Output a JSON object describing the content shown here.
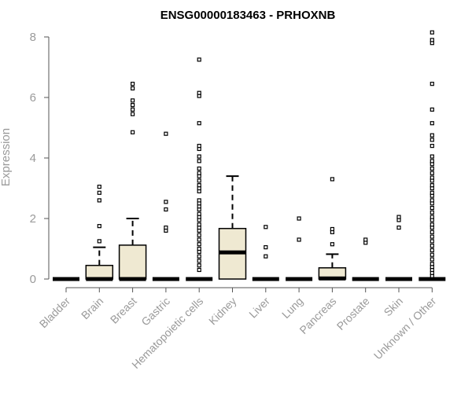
{
  "chart_data": {
    "type": "boxplot",
    "title": "ENSG00000183463 - PRHOXNB",
    "xlabel": "",
    "ylabel": "Expression",
    "ylim": [
      0,
      8.2
    ],
    "yticks": [
      "0",
      "2",
      "4",
      "6",
      "8"
    ],
    "box_fill": "#efe9d2",
    "grid": false,
    "categories": [
      "Bladder",
      "Brain",
      "Breast",
      "Gastric",
      "Hematopoietic cells",
      "Kidney",
      "Liver",
      "Lung",
      "Pancreas",
      "Prostate",
      "Skin",
      "Unknown / Other"
    ],
    "boxes": [
      {
        "q1": 0,
        "median": 0,
        "q3": 0,
        "whisker_low": 0,
        "whisker_high": 0,
        "outliers": []
      },
      {
        "q1": 0,
        "median": 0,
        "q3": 0.45,
        "whisker_low": 0,
        "whisker_high": 1.05,
        "outliers": [
          1.25,
          1.75,
          2.6,
          2.85,
          3.05
        ]
      },
      {
        "q1": 0,
        "median": 0,
        "q3": 1.12,
        "whisker_low": 0,
        "whisker_high": 2.0,
        "outliers": [
          4.85,
          5.45,
          5.6,
          5.75,
          5.9,
          6.3,
          6.45
        ]
      },
      {
        "q1": 0,
        "median": 0,
        "q3": 0,
        "whisker_low": 0,
        "whisker_high": 0,
        "outliers": [
          1.6,
          1.7,
          2.3,
          2.55,
          4.8
        ]
      },
      {
        "q1": 0,
        "median": 0,
        "q3": 0,
        "whisker_low": 0,
        "whisker_high": 0,
        "outliers": [
          0.3,
          0.45,
          0.6,
          0.75,
          0.9,
          1.0,
          1.15,
          1.3,
          1.45,
          1.6,
          1.7,
          1.8,
          1.95,
          2.05,
          2.15,
          2.3,
          2.4,
          2.5,
          2.6,
          2.9,
          3.0,
          3.1,
          3.25,
          3.4,
          3.5,
          3.65,
          3.9,
          4.05,
          4.3,
          4.4,
          5.15,
          6.05,
          6.15,
          7.25
        ]
      },
      {
        "q1": 0,
        "median": 0.88,
        "q3": 1.67,
        "whisker_low": 0,
        "whisker_high": 3.4,
        "outliers": []
      },
      {
        "q1": 0,
        "median": 0,
        "q3": 0,
        "whisker_low": 0,
        "whisker_high": 0,
        "outliers": [
          0.75,
          1.05,
          1.72
        ]
      },
      {
        "q1": 0,
        "median": 0,
        "q3": 0,
        "whisker_low": 0,
        "whisker_high": 0,
        "outliers": [
          1.3,
          2.0
        ]
      },
      {
        "q1": 0,
        "median": 0.02,
        "q3": 0.37,
        "whisker_low": 0,
        "whisker_high": 0.82,
        "outliers": [
          1.15,
          1.55,
          1.65,
          3.3
        ]
      },
      {
        "q1": 0,
        "median": 0,
        "q3": 0,
        "whisker_low": 0,
        "whisker_high": 0,
        "outliers": [
          1.2,
          1.3
        ]
      },
      {
        "q1": 0,
        "median": 0,
        "q3": 0,
        "whisker_low": 0,
        "whisker_high": 0,
        "outliers": [
          1.7,
          1.95,
          2.05
        ]
      },
      {
        "q1": 0,
        "median": 0,
        "q3": 0,
        "whisker_low": 0,
        "whisker_high": 0,
        "outliers": [
          0.1,
          0.2,
          0.3,
          0.4,
          0.5,
          0.65,
          0.8,
          0.95,
          1.1,
          1.25,
          1.4,
          1.55,
          1.7,
          1.8,
          1.95,
          2.05,
          2.2,
          2.35,
          2.5,
          2.6,
          2.75,
          2.85,
          3.0,
          3.1,
          3.25,
          3.35,
          3.5,
          3.65,
          3.8,
          3.9,
          4.05,
          4.4,
          4.6,
          4.75,
          5.15,
          5.6,
          6.45,
          7.8,
          7.9,
          8.15
        ]
      }
    ]
  }
}
